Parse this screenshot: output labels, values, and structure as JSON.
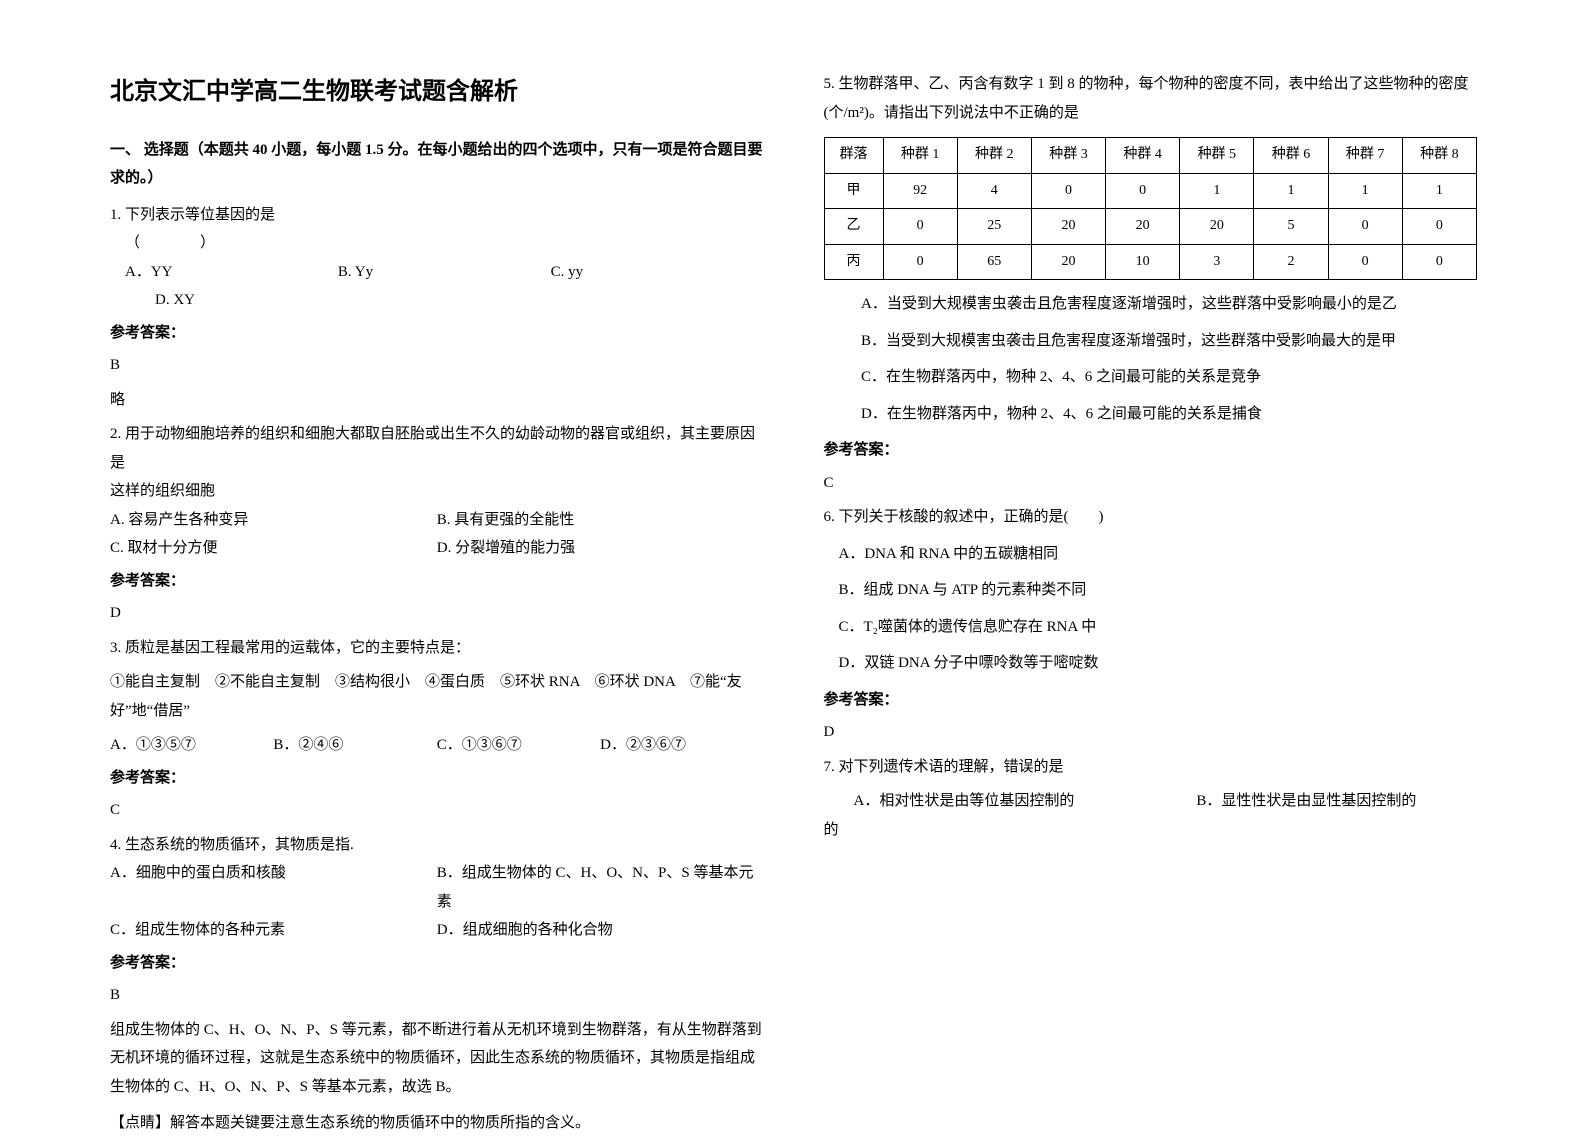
{
  "title": "北京文汇中学高二生物联考试题含解析",
  "section1_heading": "一、 选择题（本题共 40 小题，每小题 1.5 分。在每小题给出的四个选项中，只有一项是符合题目要求的。）",
  "q1": {
    "stem": "1. 下列表示等位基因的是",
    "paren": "（　　　　）",
    "optA": "A．YY",
    "optB": "B. Yy",
    "optC": "C. yy",
    "optD": "D. XY",
    "ans_label": "参考答案：",
    "ans": "B",
    "note": "略"
  },
  "q2": {
    "stem1": "2. 用于动物细胞培养的组织和细胞大都取自胚胎或出生不久的幼龄动物的器官或组织，其主要原因是",
    "stem2": "这样的组织细胞",
    "optA": "A. 容易产生各种变异",
    "optB": "B. 具有更强的全能性",
    "optC": "C. 取材十分方便",
    "optD": "D. 分裂增殖的能力强",
    "ans_label": "参考答案：",
    "ans": "D"
  },
  "q3": {
    "stem1": "3. 质粒是基因工程最常用的运载体，它的主要特点是：",
    "stem2": "①能自主复制　②不能自主复制　③结构很小　④蛋白质　⑤环状 RNA　⑥环状 DNA　⑦能“友好”地“借居”",
    "optA": "A．①③⑤⑦",
    "optB": "B．②④⑥",
    "optC": "C．①③⑥⑦",
    "optD": "D．②③⑥⑦",
    "ans_label": "参考答案：",
    "ans": "C"
  },
  "q4": {
    "stem": "4. 生态系统的物质循环，其物质是指.",
    "optA": "A．细胞中的蛋白质和核酸",
    "optB": "B．组成生物体的 C、H、O、N、P、S 等基本元素",
    "optC": "C．组成生物体的各种元素",
    "optD": "D．组成细胞的各种化合物",
    "ans_label": "参考答案：",
    "ans": "B",
    "explain1": "组成生物体的 C、H、O、N、P、S 等元素，都不断进行着从无机环境到生物群落，有从生物群落到无机环境的循环过程，这就是生态系统中的物质循环，因此生态系统的物质循环，其物质是指组成生物体的 C、H、O、N、P、S 等基本元素，故选 B。",
    "explain2": "【点睛】解答本题关键要注意生态系统的物质循环中的物质所指的含义。"
  },
  "q5": {
    "stem": "5. 生物群落甲、乙、丙含有数字 1 到 8 的物种，每个物种的密度不同，表中给出了这些物种的密度(个/m²)。请指出下列说法中不正确的是",
    "table": {
      "headers": [
        "群落",
        "种群 1",
        "种群 2",
        "种群 3",
        "种群 4",
        "种群 5",
        "种群 6",
        "种群 7",
        "种群 8"
      ],
      "rows": [
        [
          "甲",
          "92",
          "4",
          "0",
          "0",
          "1",
          "1",
          "1",
          "1"
        ],
        [
          "乙",
          "0",
          "25",
          "20",
          "20",
          "20",
          "5",
          "0",
          "0"
        ],
        [
          "丙",
          "0",
          "65",
          "20",
          "10",
          "3",
          "2",
          "0",
          "0"
        ]
      ]
    },
    "optA": "A．当受到大规模害虫袭击且危害程度逐渐增强时，这些群落中受影响最小的是乙",
    "optB": "B．当受到大规模害虫袭击且危害程度逐渐增强时，这些群落中受影响最大的是甲",
    "optC": "C．在生物群落丙中，物种 2、4、6 之间最可能的关系是竞争",
    "optD": "D．在生物群落丙中，物种 2、4、6 之间最可能的关系是捕食",
    "ans_label": "参考答案：",
    "ans": "C"
  },
  "q6": {
    "stem": "6. 下列关于核酸的叙述中，正确的是(　　)",
    "optA": "A．DNA 和 RNA 中的五碳糖相同",
    "optB": "B．组成 DNA 与 ATP 的元素种类不同",
    "optC": "C．T₂噬菌体的遗传信息贮存在 RNA 中",
    "optD": "D．双链 DNA 分子中嘌呤数等于嘧啶数",
    "ans_label": "参考答案：",
    "ans": "D"
  },
  "q7": {
    "stem": "7. 对下列遗传术语的理解，错误的是",
    "optA": "A．相对性状是由等位基因控制的",
    "optB": "B．显性性状是由显性基因控制的",
    "tail": "的"
  }
}
